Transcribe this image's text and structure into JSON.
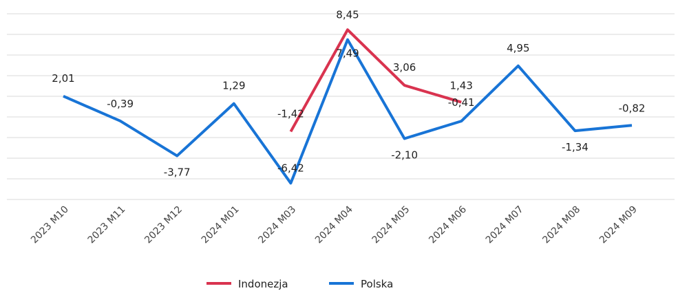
{
  "chart_data": {
    "type": "line",
    "categories": [
      "2023 M10",
      "2023 M11",
      "2023 M12",
      "2024 M01",
      "2024 M03",
      "2024 M04",
      "2024 M05",
      "2024 M06",
      "2024 M07",
      "2024 M08",
      "2024 M09"
    ],
    "series": [
      {
        "name": "Indonezja",
        "color": "#d9334f",
        "values": [
          null,
          null,
          null,
          null,
          -1.42,
          8.45,
          3.06,
          1.43,
          null,
          null,
          null
        ],
        "value_labels": [
          null,
          null,
          null,
          null,
          "-1,42",
          "8,45",
          "3,06",
          "1,43",
          null,
          null,
          null
        ]
      },
      {
        "name": "Polska",
        "color": "#1874d6",
        "values": [
          2.01,
          -0.39,
          -3.77,
          1.29,
          -6.42,
          7.49,
          -2.1,
          -0.41,
          4.95,
          -1.34,
          -0.82
        ],
        "value_labels": [
          "2,01",
          "-0,39",
          "-3,77",
          "1,29",
          "-6,42",
          "7,49",
          "-2,10",
          "-0,41",
          "4,95",
          "-1,34",
          "-0,82"
        ]
      }
    ],
    "ylim": [
      -8,
      10
    ],
    "yticks": [
      -8,
      -6,
      -4,
      -2,
      0,
      2,
      4,
      6,
      8,
      10
    ],
    "grid": true,
    "legend": "bottom"
  }
}
